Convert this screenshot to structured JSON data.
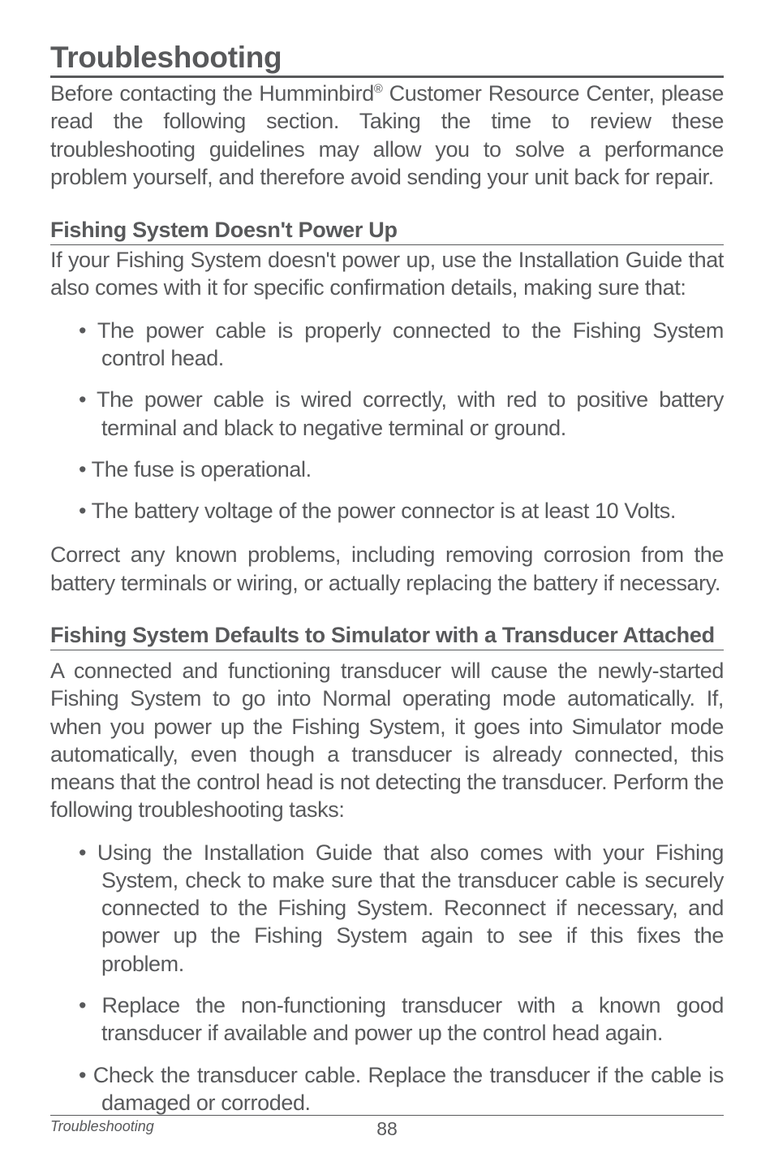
{
  "title": "Troubleshooting",
  "intro_parts": {
    "a": "Before contacting the Humminbird",
    "reg": "®",
    "b": " Customer Resource Center, please read the following section. Taking the time to review these troubleshooting guidelines may allow you to solve a performance problem yourself, and therefore avoid sending your unit back for repair."
  },
  "section1": {
    "heading": "Fishing System Doesn't Power Up",
    "intro": "If your Fishing System doesn't power up, use the Installation Guide that also comes with it for specific confirmation details, making sure that:",
    "bullets": [
      "The power cable is properly connected to the Fishing System control head.",
      "The power cable is wired correctly, with red to positive battery terminal and black to negative terminal or ground.",
      "The fuse is operational.",
      "The battery voltage of the power connector is at least 10 Volts."
    ],
    "closing": "Correct any known problems, including removing corrosion from the battery terminals or wiring, or actually replacing the battery if necessary."
  },
  "section2": {
    "heading": "Fishing System Defaults to Simulator with a Transducer Attached",
    "intro": "A connected and functioning transducer will cause the newly-started Fishing System to go into Normal operating mode automatically. If, when you power up the Fishing System, it goes into Simulator mode automatically, even though a transducer is already connected, this means that the control head is not detecting the transducer. Perform the following troubleshooting tasks:",
    "bullets": [
      "Using the Installation Guide that also comes with your Fishing System, check to make sure that the transducer cable is securely connected to the Fishing System. Reconnect if necessary, and power up the Fishing System again to see if this fixes the problem.",
      "Replace the non-functioning transducer with a known good transducer if available and power up the control head again.",
      "Check the transducer cable. Replace the transducer if the cable is damaged or corroded."
    ]
  },
  "footer": {
    "label": "Troubleshooting",
    "page": "88"
  }
}
